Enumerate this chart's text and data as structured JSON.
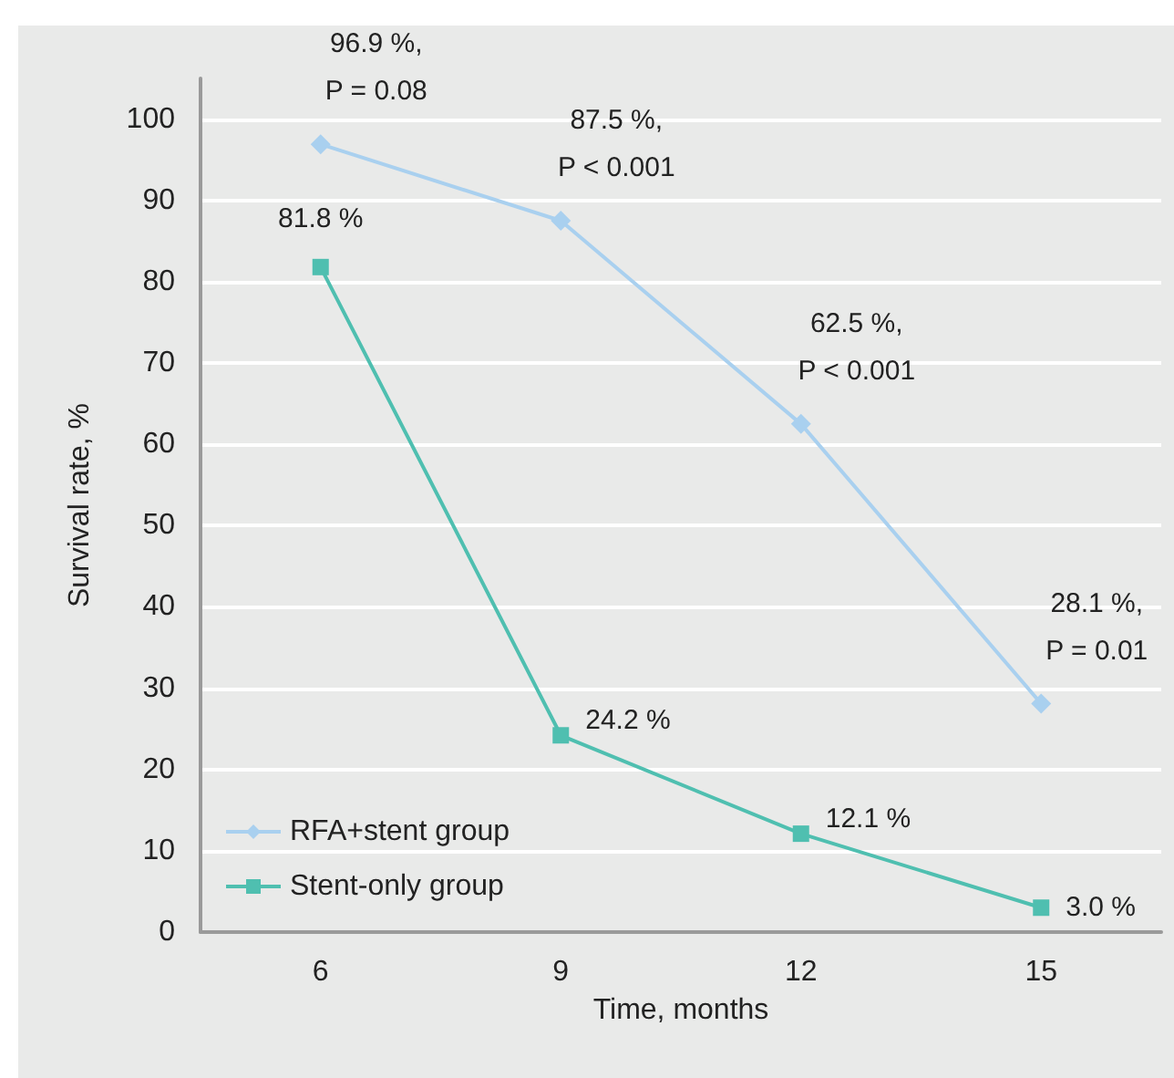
{
  "chart_data": {
    "type": "line",
    "xlabel": "Time, months",
    "ylabel": "Survival rate, %",
    "categories": [
      "6",
      "9",
      "12",
      "15"
    ],
    "ylim": [
      0,
      105
    ],
    "yticks": [
      0,
      10,
      20,
      30,
      40,
      50,
      60,
      70,
      80,
      90,
      100
    ],
    "grid": "y",
    "legend": "bottom left",
    "line_style": "solid",
    "series": [
      {
        "name": "RFA+stent group",
        "color": "#a9d0ef",
        "marker": "diamond",
        "values": [
          96.9,
          87.5,
          62.5,
          28.1
        ],
        "value_labels": [
          "96.9 %, P = 0.08",
          "87.5 %, P < 0.001",
          "62.5 %, P < 0.001",
          "28.1 %, P = 0.01"
        ]
      },
      {
        "name": "Stent-only group",
        "color": "#4fbfb0",
        "marker": "square",
        "values": [
          81.8,
          24.2,
          12.1,
          3.0
        ],
        "value_labels": [
          "81.8 %",
          "24.2 %",
          "12.1 %",
          "3.0 %"
        ]
      }
    ]
  }
}
